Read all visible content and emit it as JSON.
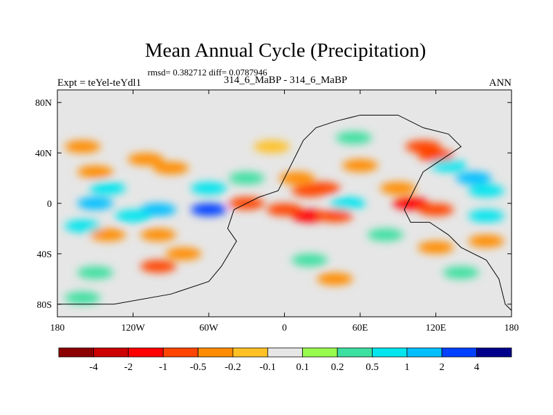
{
  "chart_data": {
    "type": "heatmap",
    "title": "Mean Annual Cycle (Precipitation)",
    "stats": "rmsd= 0.382712 diff= 0.0787946",
    "experiment": "Expt = teYel-teYdl1",
    "subtitle": "314_6_MaBP - 314_6_MaBP",
    "season": "ANN",
    "x_axis": {
      "range": [
        -180,
        180
      ],
      "ticks": [
        -180,
        -120,
        -60,
        0,
        60,
        120,
        180
      ],
      "tick_labels": [
        "180",
        "120W",
        "60W",
        "0",
        "60E",
        "120E",
        "180"
      ]
    },
    "y_axis": {
      "range": [
        -90,
        90
      ],
      "ticks": [
        80,
        40,
        0,
        -40,
        -80
      ],
      "tick_labels": [
        "80N",
        "40N",
        "0",
        "40S",
        "80S"
      ]
    },
    "colorbar": {
      "levels": [
        -4,
        -2,
        -1,
        -0.5,
        -0.2,
        -0.1,
        0.1,
        0.2,
        0.5,
        1,
        2,
        4
      ],
      "level_labels": [
        "-4",
        "-2",
        "-1",
        "-0.5",
        "-0.2",
        "-0.1",
        "0.1",
        "0.2",
        "0.5",
        "1",
        "2",
        "4"
      ],
      "colors": [
        "#8B0000",
        "#CC0000",
        "#FF0000",
        "#FF4500",
        "#FF8C00",
        "#FFC125",
        "#E6E6E6",
        "#98FB4F",
        "#3CE0A0",
        "#00E5EE",
        "#00BFFF",
        "#0040FF",
        "#00008B"
      ]
    },
    "anomalies": [
      {
        "lon": -160,
        "lat": 45,
        "value": -0.3
      },
      {
        "lon": -150,
        "lat": 25,
        "value": -0.25
      },
      {
        "lon": -110,
        "lat": 35,
        "value": -0.3
      },
      {
        "lon": -90,
        "lat": 28,
        "value": -0.4
      },
      {
        "lon": -140,
        "lat": 12,
        "value": 0.6
      },
      {
        "lon": -60,
        "lat": 12,
        "value": 0.5
      },
      {
        "lon": -150,
        "lat": 0,
        "value": 1.0
      },
      {
        "lon": -100,
        "lat": -5,
        "value": 1.2
      },
      {
        "lon": -120,
        "lat": -10,
        "value": 0.8
      },
      {
        "lon": -60,
        "lat": -5,
        "value": 2.0
      },
      {
        "lon": -160,
        "lat": -18,
        "value": 0.7
      },
      {
        "lon": -140,
        "lat": -25,
        "value": -0.3
      },
      {
        "lon": -100,
        "lat": -25,
        "value": -0.35
      },
      {
        "lon": -80,
        "lat": -40,
        "value": -0.5
      },
      {
        "lon": -100,
        "lat": -50,
        "value": -0.6
      },
      {
        "lon": -150,
        "lat": -55,
        "value": 0.3
      },
      {
        "lon": -160,
        "lat": -75,
        "value": 0.4
      },
      {
        "lon": -10,
        "lat": 45,
        "value": -0.2
      },
      {
        "lon": -30,
        "lat": 20,
        "value": 0.3
      },
      {
        "lon": 10,
        "lat": 20,
        "value": -0.3
      },
      {
        "lon": 20,
        "lat": 10,
        "value": -1.0
      },
      {
        "lon": 30,
        "lat": 12,
        "value": -0.8
      },
      {
        "lon": -30,
        "lat": 0,
        "value": -0.6
      },
      {
        "lon": 0,
        "lat": -5,
        "value": -0.8
      },
      {
        "lon": 20,
        "lat": -10,
        "value": -1.1
      },
      {
        "lon": 40,
        "lat": -10,
        "value": -0.7
      },
      {
        "lon": 50,
        "lat": 0,
        "value": 0.8
      },
      {
        "lon": 60,
        "lat": 30,
        "value": -0.3
      },
      {
        "lon": 55,
        "lat": 52,
        "value": 0.3
      },
      {
        "lon": 90,
        "lat": 12,
        "value": -0.5
      },
      {
        "lon": 110,
        "lat": 45,
        "value": -0.7
      },
      {
        "lon": 120,
        "lat": 38,
        "value": -1.0
      },
      {
        "lon": 130,
        "lat": 30,
        "value": 0.6
      },
      {
        "lon": 150,
        "lat": 20,
        "value": 1.0
      },
      {
        "lon": 160,
        "lat": 10,
        "value": 0.7
      },
      {
        "lon": 100,
        "lat": 0,
        "value": -1.2
      },
      {
        "lon": 120,
        "lat": -5,
        "value": -0.6
      },
      {
        "lon": 160,
        "lat": -10,
        "value": 0.5
      },
      {
        "lon": 80,
        "lat": -25,
        "value": 0.4
      },
      {
        "lon": 120,
        "lat": -35,
        "value": -0.5
      },
      {
        "lon": 160,
        "lat": -30,
        "value": -0.4
      },
      {
        "lon": 20,
        "lat": -45,
        "value": 0.3
      },
      {
        "lon": 140,
        "lat": -55,
        "value": 0.4
      },
      {
        "lon": 40,
        "lat": -60,
        "value": -0.3
      }
    ],
    "coastline": [
      [
        [
          -180,
          -80
        ],
        [
          -135,
          -80
        ],
        [
          -90,
          -72
        ],
        [
          -60,
          -62
        ],
        [
          -50,
          -50
        ],
        [
          -38,
          -30
        ],
        [
          -45,
          -20
        ],
        [
          -40,
          -5
        ],
        [
          -20,
          5
        ],
        [
          -5,
          10
        ],
        [
          0,
          20
        ],
        [
          5,
          30
        ],
        [
          10,
          40
        ],
        [
          15,
          50
        ],
        [
          25,
          60
        ],
        [
          40,
          65
        ],
        [
          60,
          70
        ],
        [
          90,
          70
        ],
        [
          110,
          60
        ],
        [
          130,
          55
        ],
        [
          140,
          45
        ],
        [
          125,
          35
        ],
        [
          110,
          25
        ],
        [
          105,
          15
        ],
        [
          100,
          5
        ],
        [
          95,
          -5
        ],
        [
          100,
          -15
        ],
        [
          115,
          -15
        ],
        [
          130,
          -25
        ],
        [
          140,
          -35
        ],
        [
          160,
          -45
        ],
        [
          170,
          -60
        ],
        [
          175,
          -80
        ],
        [
          180,
          -85
        ],
        [
          180,
          -90
        ],
        [
          -180,
          -90
        ],
        [
          -180,
          -80
        ]
      ]
    ]
  }
}
